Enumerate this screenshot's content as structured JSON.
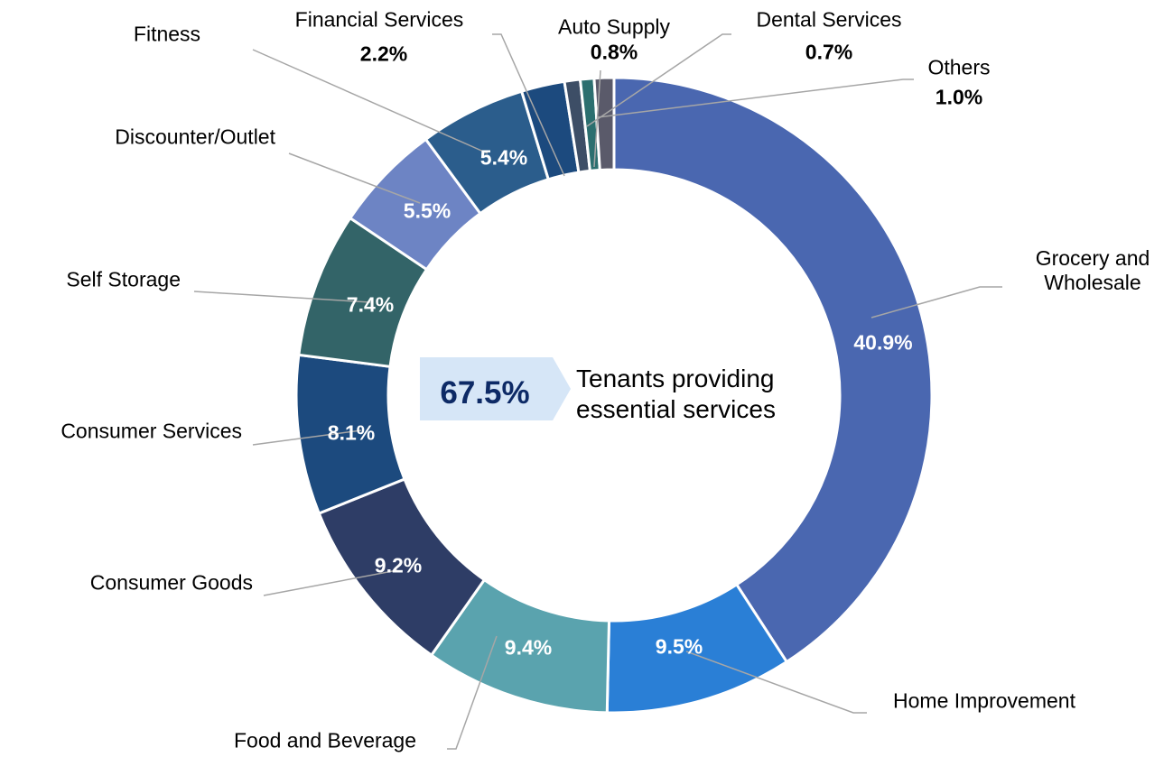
{
  "chart_data": {
    "type": "donut",
    "categories": [
      "Grocery and Wholesale",
      "Home Improvement",
      "Food and Beverage",
      "Consumer Goods",
      "Consumer Services",
      "Self Storage",
      "Discounter/Outlet",
      "Fitness",
      "Financial Services",
      "Auto Supply",
      "Dental Services",
      "Others"
    ],
    "values": [
      40.9,
      9.5,
      9.4,
      9.2,
      8.1,
      7.4,
      5.5,
      5.4,
      2.2,
      0.8,
      0.7,
      1.0
    ],
    "value_labels": [
      "40.9%",
      "9.5%",
      "9.4%",
      "9.2%",
      "8.1%",
      "7.4%",
      "5.5%",
      "5.4%",
      "2.2%",
      "0.8%",
      "0.7%",
      "1.0%"
    ],
    "colors": [
      "#4a67b0",
      "#2a7fd6",
      "#5aa3ae",
      "#2e3d66",
      "#1c4a7e",
      "#336468",
      "#6d84c4",
      "#2b5d8c",
      "#1c4a7e",
      "#3d4e66",
      "#2c6f6f",
      "#5a5a6a"
    ],
    "center_annotation": {
      "value_label": "67.5%",
      "text": "Tenants providing essential services"
    }
  }
}
